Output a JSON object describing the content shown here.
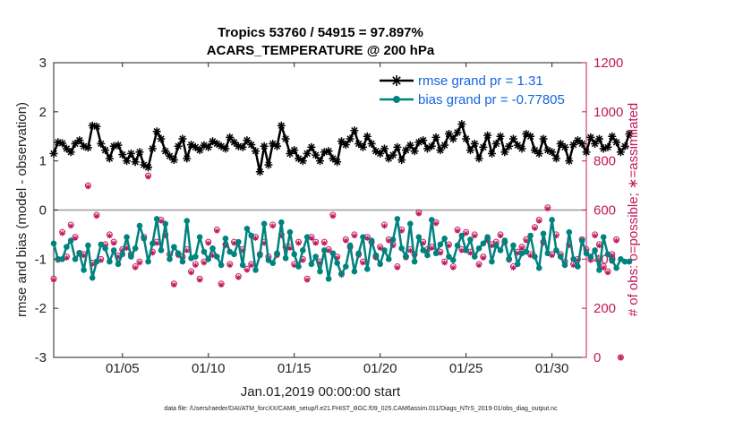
{
  "chart_data": {
    "type": "line",
    "title": "Tropics 53760 / 54915 = 97.897%",
    "subtitle": "ACARS_TEMPERATURE @ 200 hPa",
    "xlabel": "Jan.01,2019 00:00:00 start",
    "ylabel": "rmse and bias (model - observation)",
    "ylabel_right": "# of obs: o=possible; ∗=assimilated",
    "footnote": "data file: /Users/raeder/DAI/ATM_forcXX/CAM6_setup/f.e21.FHIST_BGC.f09_025.CAM6assim.011/Diags_NTrS_2019-01/obs_diag_output.nc",
    "xlim": [
      1,
      32
    ],
    "ylim": [
      -3,
      3
    ],
    "ylim_right": [
      0,
      1200
    ],
    "x_ticks": [
      5,
      10,
      15,
      20,
      25,
      30
    ],
    "x_tick_labels": [
      "01/05",
      "01/10",
      "01/15",
      "01/20",
      "01/25",
      "01/30"
    ],
    "y_ticks": [
      "-3",
      "-2",
      "-1",
      "0",
      "1",
      "2",
      "3"
    ],
    "y_ticks_right": [
      "0",
      "200",
      "400",
      "600",
      "800",
      "1000",
      "1200"
    ],
    "legend": [
      "rmse grand pr = 1.31",
      "bias grand pr = -0.77805"
    ],
    "legend_position": "top-right",
    "x_start": 1,
    "x_step": 0.25,
    "series": [
      {
        "name": "rmse",
        "color": "#000000",
        "marker": "asterisk",
        "values": [
          1.15,
          1.38,
          1.36,
          1.25,
          1.18,
          1.35,
          1.42,
          1.3,
          1.27,
          1.72,
          1.7,
          1.35,
          1.22,
          1.05,
          1.3,
          1.32,
          1.13,
          1.0,
          1.15,
          0.98,
          1.18,
          0.92,
          0.87,
          1.25,
          1.6,
          1.45,
          1.2,
          1.1,
          1.02,
          1.3,
          1.45,
          1.05,
          1.33,
          1.28,
          1.22,
          1.32,
          1.28,
          1.4,
          1.35,
          1.3,
          1.25,
          1.48,
          1.38,
          1.3,
          1.28,
          1.42,
          1.33,
          1.2,
          0.78,
          1.3,
          0.92,
          1.35,
          1.3,
          1.72,
          1.45,
          1.15,
          1.22,
          1.05,
          1.0,
          1.15,
          1.28,
          1.12,
          1.0,
          1.18,
          1.2,
          1.05,
          0.98,
          1.4,
          1.33,
          1.45,
          1.62,
          1.35,
          1.28,
          1.5,
          1.35,
          1.2,
          1.15,
          1.25,
          1.05,
          1.12,
          1.28,
          1.02,
          1.22,
          1.32,
          1.2,
          1.38,
          1.42,
          1.25,
          1.3,
          1.48,
          1.22,
          1.32,
          1.55,
          1.45,
          1.58,
          1.75,
          1.45,
          1.22,
          1.35,
          1.05,
          1.28,
          1.52,
          1.15,
          1.35,
          1.5,
          1.18,
          1.3,
          1.45,
          1.32,
          1.25,
          1.55,
          1.5,
          1.22,
          1.15,
          1.45,
          1.22,
          1.18,
          1.05,
          1.35,
          1.28,
          1.0,
          1.33,
          1.42,
          1.35,
          1.18,
          1.48,
          1.35,
          1.45,
          1.25,
          1.28,
          1.5,
          1.38,
          1.18,
          1.3,
          1.55
        ]
      },
      {
        "name": "bias",
        "color": "#00827f",
        "marker": "circle",
        "values": [
          -0.68,
          -1.0,
          -1.0,
          -0.75,
          -0.62,
          -1.0,
          -0.88,
          -1.22,
          -0.72,
          -1.38,
          -1.05,
          -0.7,
          -0.78,
          -1.05,
          -0.82,
          -1.1,
          -0.9,
          -0.55,
          -0.95,
          -0.78,
          -0.32,
          -0.58,
          -1.05,
          -0.68,
          -0.18,
          -0.82,
          -0.28,
          -1.0,
          -0.75,
          -0.88,
          -1.05,
          -0.22,
          -0.98,
          -0.95,
          -0.55,
          -0.85,
          -1.0,
          -0.78,
          -0.95,
          -1.12,
          -0.58,
          -0.85,
          -0.9,
          -0.65,
          -1.12,
          -0.38,
          -0.52,
          -1.22,
          -0.92,
          -0.28,
          -1.02,
          -1.08,
          -0.88,
          -0.25,
          -0.98,
          -0.45,
          -0.9,
          -1.15,
          -0.82,
          -0.55,
          -1.1,
          -0.95,
          -1.25,
          -0.82,
          -1.4,
          -0.88,
          -1.08,
          -1.3,
          -1.15,
          -0.72,
          -1.25,
          -0.88,
          -0.55,
          -1.2,
          -0.62,
          -0.92,
          -1.1,
          -0.82,
          -1.0,
          -0.6,
          -0.18,
          -0.78,
          -0.95,
          -0.28,
          -1.05,
          -0.55,
          -0.82,
          -0.92,
          -0.2,
          -0.88,
          -0.7,
          -0.58,
          -0.95,
          -1.02,
          -0.72,
          -0.52,
          -0.82,
          -0.6,
          -0.95,
          -0.78,
          -0.68,
          -0.55,
          -1.05,
          -0.72,
          -0.82,
          -0.62,
          -1.0,
          -0.72,
          -1.1,
          -0.88,
          -0.85,
          -0.52,
          -0.95,
          -1.18,
          -0.48,
          -0.88,
          -0.2,
          -0.82,
          -0.95,
          -1.12,
          -0.45,
          -1.0,
          -1.15,
          -0.62,
          -0.88,
          -0.95,
          -0.82,
          -1.22,
          -0.55,
          -0.9,
          -1.02,
          -1.18,
          -1.0,
          -1.05,
          -1.05
        ]
      },
      {
        "name": "possible",
        "color": "#c2185b",
        "marker": "open-circle",
        "values": [
          320,
          400,
          510,
          410,
          540,
          490,
          425,
          420,
          700,
          385,
          580,
          400,
          460,
          500,
          470,
          415,
          440,
          450,
          420,
          370,
          390,
          490,
          740,
          430,
          470,
          560,
          500,
          420,
          300,
          420,
          410,
          440,
          350,
          380,
          320,
          390,
          470,
          420,
          520,
          300,
          460,
          380,
          470,
          330,
          440,
          360,
          380,
          490,
          420,
          470,
          410,
          540,
          420,
          500,
          450,
          450,
          380,
          470,
          400,
          320,
          490,
          470,
          390,
          470,
          440,
          580,
          410,
          340,
          480,
          450,
          500,
          420,
          390,
          490,
          470,
          410,
          450,
          540,
          480,
          460,
          370,
          520,
          410,
          440,
          420,
          590,
          470,
          440,
          450,
          550,
          430,
          390,
          460,
          370,
          520,
          440,
          510,
          430,
          500,
          380,
          410,
          480,
          460,
          470,
          500,
          470,
          400,
          370,
          430,
          450,
          480,
          420,
          530,
          560,
          470,
          610,
          420,
          500,
          420,
          390,
          460,
          380,
          400,
          480,
          440,
          400,
          500,
          460,
          370,
          350,
          420,
          480,
          0
        ]
      },
      {
        "name": "assimilated",
        "color": "#c2185b",
        "marker": "asterisk",
        "values": [
          315,
          395,
          505,
          405,
          535,
          485,
          420,
          415,
          695,
          380,
          575,
          395,
          455,
          495,
          465,
          410,
          435,
          445,
          415,
          365,
          385,
          485,
          735,
          425,
          465,
          555,
          495,
          415,
          295,
          415,
          405,
          435,
          345,
          375,
          315,
          385,
          465,
          415,
          515,
          295,
          455,
          375,
          465,
          325,
          435,
          355,
          375,
          485,
          415,
          465,
          405,
          535,
          415,
          495,
          445,
          445,
          375,
          465,
          395,
          315,
          485,
          465,
          385,
          465,
          435,
          575,
          405,
          335,
          475,
          445,
          495,
          415,
          385,
          485,
          465,
          405,
          445,
          535,
          475,
          455,
          365,
          515,
          405,
          435,
          415,
          585,
          465,
          435,
          445,
          545,
          425,
          385,
          455,
          365,
          515,
          435,
          505,
          425,
          495,
          375,
          405,
          475,
          455,
          465,
          495,
          465,
          395,
          365,
          425,
          445,
          475,
          415,
          525,
          555,
          465,
          605,
          415,
          495,
          415,
          385,
          455,
          375,
          395,
          475,
          435,
          395,
          495,
          455,
          365,
          345,
          415,
          475,
          0
        ]
      }
    ]
  }
}
